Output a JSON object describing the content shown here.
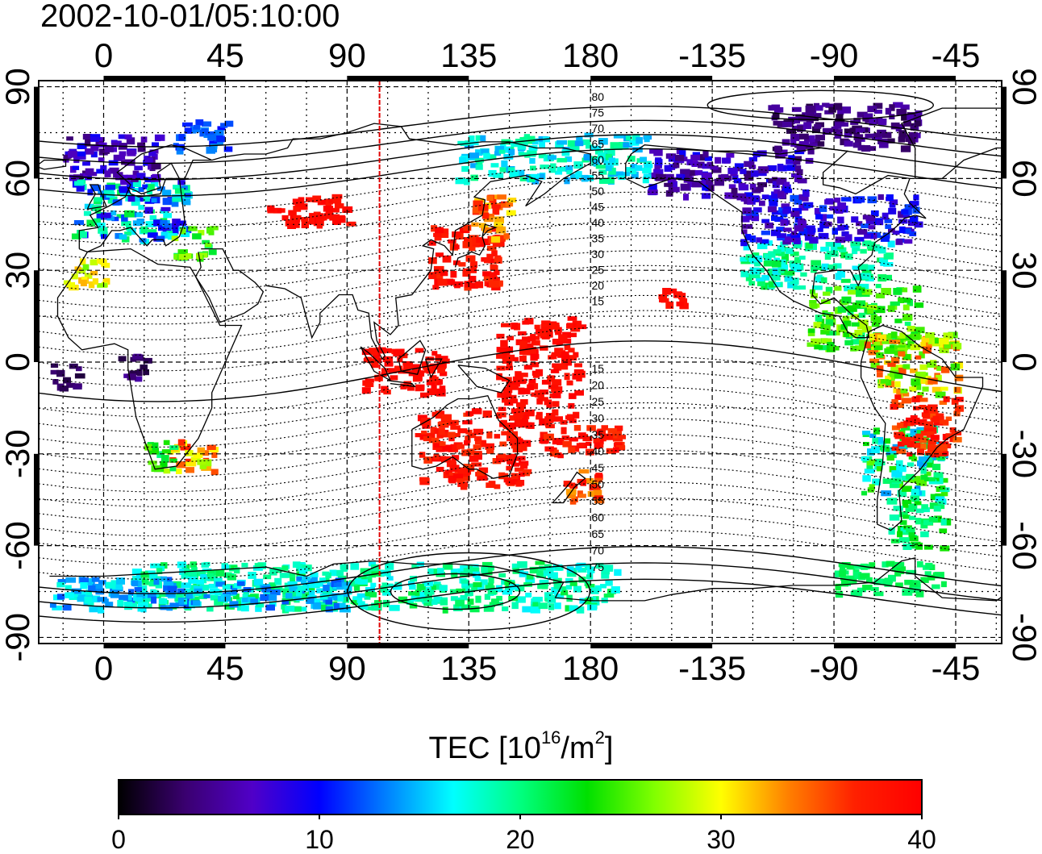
{
  "title": "2002-10-01/05:10:00",
  "map": {
    "lon_ticks": [
      "0",
      "45",
      "90",
      "135",
      "180",
      "-135",
      "-90",
      "-45"
    ],
    "lon_values": [
      0,
      45,
      90,
      135,
      180,
      225,
      270,
      315
    ],
    "lat_ticks": [
      "90",
      "60",
      "30",
      "0",
      "-30",
      "-60",
      "-90"
    ],
    "lat_values": [
      90,
      60,
      30,
      0,
      -30,
      -60,
      -90
    ],
    "lon_range": [
      -24,
      332
    ],
    "lat_range": [
      -92,
      92
    ],
    "grid_spacing_deg": 15,
    "meridian_lon": 102,
    "meridian_color": "#e00000",
    "contour_labels_north": [
      "80",
      "75",
      "70",
      "65",
      "60",
      "55",
      "50",
      "45",
      "40",
      "35",
      "30",
      "25",
      "20",
      "15"
    ],
    "contour_labels_south": [
      "15",
      "20",
      "25",
      "30",
      "35",
      "40",
      "45",
      "50",
      "55",
      "60",
      "65",
      "70",
      "75"
    ],
    "contour_label_lon": 178
  },
  "colorbar": {
    "label_main": "TEC  [10",
    "label_exp1": "16",
    "label_mid": "/m",
    "label_exp2": "2",
    "label_end": "]",
    "min": 0,
    "max": 40,
    "ticks": [
      "0",
      "10",
      "20",
      "30",
      "40"
    ],
    "tick_values": [
      0,
      10,
      20,
      30,
      40
    ],
    "colors": [
      "#000000",
      "#3a0070",
      "#5000c8",
      "#0000ff",
      "#0080ff",
      "#00ffff",
      "#00ff80",
      "#00e000",
      "#80ff00",
      "#ffff00",
      "#ff8000",
      "#ff2000",
      "#ff0000"
    ]
  },
  "tec_regions": [
    {
      "lon": [
        -12,
        30
      ],
      "lat": [
        40,
        60
      ],
      "tec": [
        8,
        22
      ]
    },
    {
      "lon": [
        -15,
        20
      ],
      "lat": [
        60,
        75
      ],
      "tec": [
        3,
        10
      ]
    },
    {
      "lon": [
        25,
        40
      ],
      "lat": [
        35,
        45
      ],
      "tec": [
        20,
        28
      ]
    },
    {
      "lon": [
        -15,
        0
      ],
      "lat": [
        25,
        35
      ],
      "tec": [
        26,
        32
      ]
    },
    {
      "lon": [
        22,
        40
      ],
      "lat": [
        -35,
        -25
      ],
      "tec": [
        26,
        38
      ]
    },
    {
      "lon": [
        15,
        25
      ],
      "lat": [
        -35,
        -25
      ],
      "tec": [
        20,
        26
      ]
    },
    {
      "lon": [
        5,
        15
      ],
      "lat": [
        -5,
        3
      ],
      "tec": [
        2,
        6
      ]
    },
    {
      "lon": [
        -20,
        -10
      ],
      "lat": [
        -8,
        0
      ],
      "tec": [
        1,
        4
      ]
    },
    {
      "lon": [
        60,
        90
      ],
      "lat": [
        45,
        55
      ],
      "tec": [
        38,
        40
      ]
    },
    {
      "lon": [
        120,
        145
      ],
      "lat": [
        25,
        45
      ],
      "tec": [
        36,
        40
      ]
    },
    {
      "lon": [
        135,
        150
      ],
      "lat": [
        40,
        55
      ],
      "tec": [
        30,
        38
      ]
    },
    {
      "lon": [
        95,
        125
      ],
      "lat": [
        -10,
        5
      ],
      "tec": [
        38,
        40
      ]
    },
    {
      "lon": [
        115,
        155
      ],
      "lat": [
        -40,
        -15
      ],
      "tec": [
        36,
        40
      ]
    },
    {
      "lon": [
        145,
        175
      ],
      "lat": [
        -20,
        15
      ],
      "tec": [
        38,
        40
      ]
    },
    {
      "lon": [
        168,
        182
      ],
      "lat": [
        -45,
        -35
      ],
      "tec": [
        32,
        40
      ]
    },
    {
      "lon": [
        160,
        190
      ],
      "lat": [
        -30,
        -20
      ],
      "tec": [
        36,
        40
      ]
    },
    {
      "lon": [
        205,
        215
      ],
      "lat": [
        18,
        25
      ],
      "tec": [
        38,
        40
      ]
    },
    {
      "lon": [
        235,
        290
      ],
      "lat": [
        25,
        40
      ],
      "tec": [
        16,
        22
      ]
    },
    {
      "lon": [
        235,
        300
      ],
      "lat": [
        40,
        55
      ],
      "tec": [
        5,
        12
      ]
    },
    {
      "lon": [
        200,
        260
      ],
      "lat": [
        55,
        70
      ],
      "tec": [
        3,
        10
      ]
    },
    {
      "lon": [
        245,
        300
      ],
      "lat": [
        70,
        85
      ],
      "tec": [
        2,
        6
      ]
    },
    {
      "lon": [
        260,
        300
      ],
      "lat": [
        5,
        25
      ],
      "tec": [
        20,
        28
      ]
    },
    {
      "lon": [
        280,
        310
      ],
      "lat": [
        -45,
        -20
      ],
      "tec": [
        14,
        26
      ]
    },
    {
      "lon": [
        290,
        310
      ],
      "lat": [
        -60,
        -45
      ],
      "tec": [
        18,
        24
      ]
    },
    {
      "lon": [
        10,
        190
      ],
      "lat": [
        -80,
        -65
      ],
      "tec": [
        16,
        22
      ]
    },
    {
      "lon": [
        -20,
        90
      ],
      "lat": [
        -80,
        -70
      ],
      "tec": [
        12,
        18
      ]
    },
    {
      "lon": [
        25,
        45
      ],
      "lat": [
        70,
        80
      ],
      "tec": [
        10,
        14
      ]
    },
    {
      "lon": [
        130,
        200
      ],
      "lat": [
        60,
        75
      ],
      "tec": [
        14,
        20
      ]
    },
    {
      "lon": [
        280,
        315
      ],
      "lat": [
        -10,
        10
      ],
      "tec": [
        24,
        36
      ]
    },
    {
      "lon": [
        290,
        315
      ],
      "lat": [
        -30,
        -10
      ],
      "tec": [
        34,
        40
      ]
    },
    {
      "lon": [
        270,
        310
      ],
      "lat": [
        -75,
        -65
      ],
      "tec": [
        20,
        22
      ]
    }
  ]
}
